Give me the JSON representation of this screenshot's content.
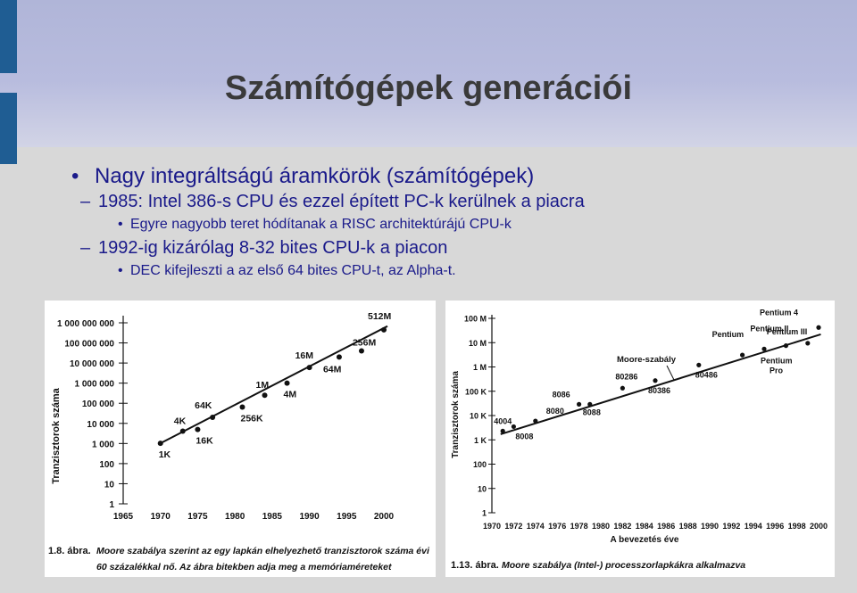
{
  "slide": {
    "title": "Számítógépek generációi",
    "bullets": [
      {
        "level": 1,
        "text": "Nagy integráltságú áramkörök (számítógépek)"
      },
      {
        "level": 2,
        "text": "1985: Intel 386-s CPU és ezzel épített PC-k kerülnek a piacra"
      },
      {
        "level": 3,
        "text": "Egyre nagyobb teret hódítanak a RISC architektúrájú CPU-k"
      },
      {
        "level": 2,
        "text": "1992-ig kizárólag 8-32 bites CPU-k a piacon"
      },
      {
        "level": 3,
        "text": "DEC kifejleszti a az első 64 bites CPU-t, az Alpha-t."
      }
    ]
  },
  "colors": {
    "title": "#3a3a3a",
    "bullet_text": "#1a1a8a",
    "accent": "#1f5d93",
    "header": "#b8bcde"
  },
  "chart_data": [
    {
      "type": "scatter",
      "title": "",
      "ylabel": "Tranzisztorok száma",
      "xlabel": "",
      "scale": "log",
      "x_ticks": [
        "1965",
        "1970",
        "1975",
        "1980",
        "1985",
        "1990",
        "1995",
        "2000"
      ],
      "y_ticks": [
        "1",
        "10",
        "100",
        "1 000",
        "10 000",
        "100 000",
        "1 000 000",
        "10 000 000",
        "100 000 000",
        "1 000 000 000"
      ],
      "xlim": [
        1965,
        2000
      ],
      "ylim": [
        1,
        1000000000
      ],
      "points": [
        {
          "x": 1970,
          "y": 1024,
          "label": "1K"
        },
        {
          "x": 1973,
          "y": 4096,
          "label": "4K"
        },
        {
          "x": 1975,
          "y": 5000,
          "label": "16K"
        },
        {
          "x": 1977,
          "y": 20000,
          "label": "64K"
        },
        {
          "x": 1981,
          "y": 65000,
          "label": "256K"
        },
        {
          "x": 1984,
          "y": 250000,
          "label": "1M"
        },
        {
          "x": 1987,
          "y": 1000000,
          "label": "4M"
        },
        {
          "x": 1990,
          "y": 6000000,
          "label": "16M"
        },
        {
          "x": 1994,
          "y": 20000000,
          "label": "64M"
        },
        {
          "x": 1997,
          "y": 40000000,
          "label": "256M"
        },
        {
          "x": 2000,
          "y": 450000000,
          "label": "512M"
        }
      ],
      "caption_number": "1.8. ábra.",
      "caption_line1": "Moore szabálya szerint az egy lapkán elhelyezhető tranzisztorok száma évi",
      "caption_line2": "60 százalékkal nő. Az ábra bitekben adja meg a memóriaméreteket"
    },
    {
      "type": "scatter",
      "title": "",
      "ylabel": "Tranzisztorok száma",
      "xlabel": "A bevezetés éve",
      "scale": "log",
      "trend_label": "Moore-szabály",
      "x_ticks": [
        "1970",
        "1972",
        "1974",
        "1976",
        "1978",
        "1980",
        "1982",
        "1984",
        "1986",
        "1988",
        "1990",
        "1992",
        "1994",
        "1996",
        "1998",
        "2000"
      ],
      "y_ticks": [
        "1",
        "10",
        "100",
        "1 K",
        "10 K",
        "100 K",
        "1 M",
        "10 M",
        "100 M"
      ],
      "xlim": [
        1970,
        2000
      ],
      "ylim": [
        1,
        100000000
      ],
      "points": [
        {
          "x": 1971,
          "y": 2300,
          "label": "4004"
        },
        {
          "x": 1972,
          "y": 3500,
          "label": "8008"
        },
        {
          "x": 1974,
          "y": 6000,
          "label": "8080"
        },
        {
          "x": 1978,
          "y": 29000,
          "label": "8086"
        },
        {
          "x": 1979,
          "y": 29000,
          "label": "8088"
        },
        {
          "x": 1982,
          "y": 134000,
          "label": "80286"
        },
        {
          "x": 1985,
          "y": 275000,
          "label": "80386"
        },
        {
          "x": 1989,
          "y": 1200000,
          "label": "80486"
        },
        {
          "x": 1993,
          "y": 3100000,
          "label": "Pentium"
        },
        {
          "x": 1995,
          "y": 5500000,
          "label": "Pentium Pro"
        },
        {
          "x": 1997,
          "y": 7500000,
          "label": "Pentium II"
        },
        {
          "x": 1999,
          "y": 9500000,
          "label": "Pentium III"
        },
        {
          "x": 2000,
          "y": 42000000,
          "label": "Pentium 4"
        }
      ],
      "caption_number": "1.13. ábra.",
      "caption_line1": "Moore szabálya (Intel-) processzorlapkákra alkalmazva"
    }
  ]
}
